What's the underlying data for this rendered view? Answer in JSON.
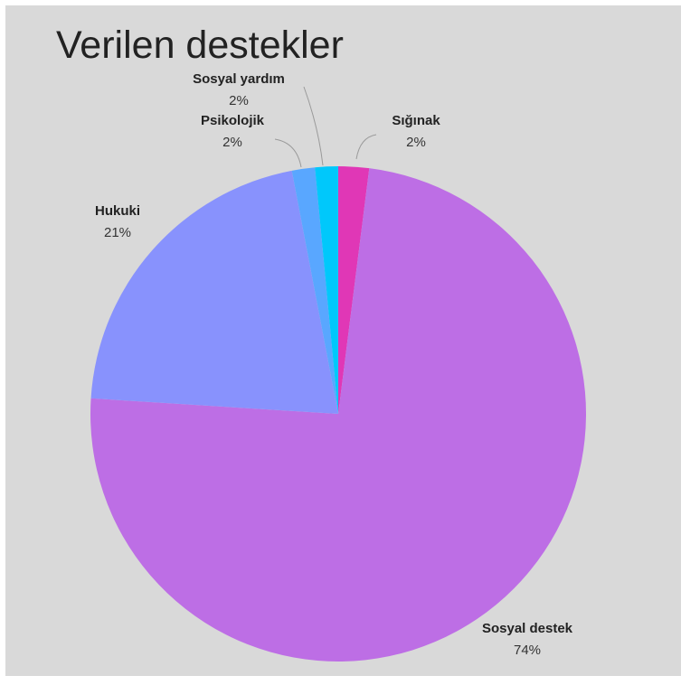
{
  "chart_data": {
    "type": "pie",
    "title": "Verilen destekler",
    "legend": "none",
    "slices": [
      {
        "label": "Sığınak",
        "value": 2,
        "value_label": "2%",
        "color": "#e037b6"
      },
      {
        "label": "Sosyal destek",
        "value": 74,
        "value_label": "74%",
        "color": "#bd6ee5"
      },
      {
        "label": "Hukuki",
        "value": 21,
        "value_label": "21%",
        "color": "#8892fd"
      },
      {
        "label": "Psikolojik",
        "value": 1.5,
        "value_label": "2%",
        "color": "#59a7ff"
      },
      {
        "label": "Sosyal yardım",
        "value": 1.5,
        "value_label": "2%",
        "color": "#00c8fb"
      }
    ]
  }
}
